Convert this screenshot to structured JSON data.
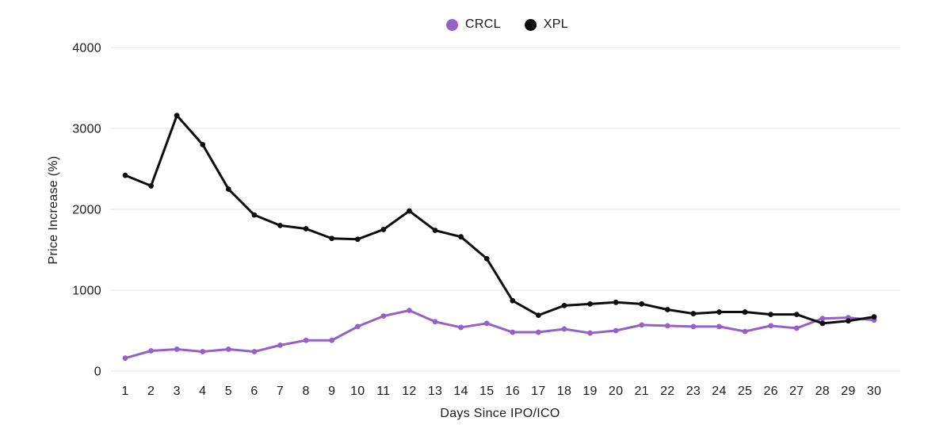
{
  "chart_data": {
    "type": "line",
    "title": "",
    "xlabel": "Days Since IPO/ICO",
    "ylabel": "Price Increase (%)",
    "x": [
      1,
      2,
      3,
      4,
      5,
      6,
      7,
      8,
      9,
      10,
      11,
      12,
      13,
      14,
      15,
      16,
      17,
      18,
      19,
      20,
      21,
      22,
      23,
      24,
      25,
      26,
      27,
      28,
      29,
      30
    ],
    "series": [
      {
        "name": "CRCL",
        "color": "#9561c9",
        "values": [
          160,
          250,
          270,
          240,
          270,
          240,
          320,
          380,
          380,
          550,
          680,
          750,
          610,
          540,
          590,
          480,
          480,
          520,
          470,
          500,
          570,
          560,
          550,
          550,
          490,
          560,
          530,
          650,
          660,
          630
        ]
      },
      {
        "name": "XPL",
        "color": "#0d0d0d",
        "values": [
          2420,
          2290,
          3160,
          2800,
          2250,
          1930,
          1800,
          1760,
          1640,
          1630,
          1750,
          1980,
          1740,
          1660,
          1390,
          870,
          690,
          810,
          830,
          850,
          830,
          760,
          710,
          730,
          730,
          700,
          700,
          590,
          620,
          670
        ]
      }
    ],
    "ylim": [
      0,
      4000
    ],
    "yticks": [
      0,
      1000,
      2000,
      3000,
      4000
    ],
    "grid": "horizontal",
    "gridline_color": "#e9e9e9",
    "legend_position": "top-center"
  }
}
